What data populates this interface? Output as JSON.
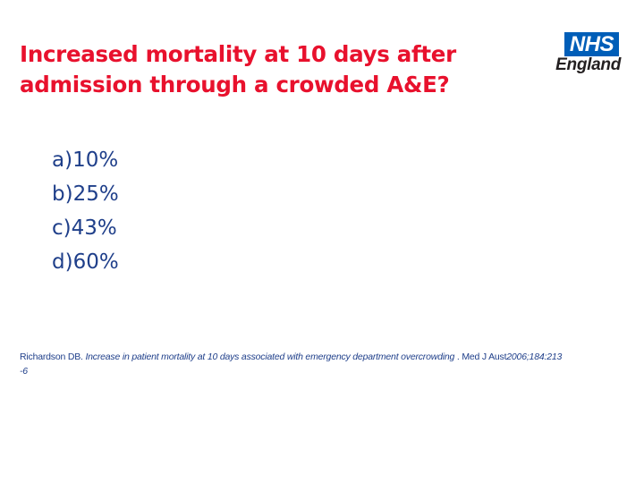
{
  "slide": {
    "title_line1": "Increased mortality at 10 days after",
    "title_line2": "admission through a crowded A&E?",
    "logo": {
      "nhs": "NHS",
      "region": "England",
      "box_color": "#005eb8"
    },
    "options": [
      "a)10%",
      "b)25%",
      "c)43%",
      "d)60%"
    ],
    "citation": {
      "authors": "Richardson DB. ",
      "article": "Increase in patient mortality at 10 days associated with emergency department overcrowding",
      "journal": " . Med J Aust",
      "details": "2006;184:213",
      "pages": "-6"
    },
    "colors": {
      "title": "#e8112d",
      "body": "#1f3f8a"
    }
  }
}
